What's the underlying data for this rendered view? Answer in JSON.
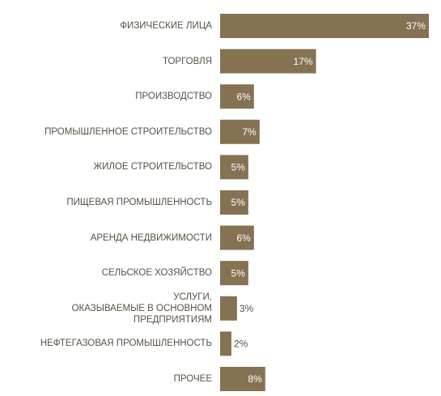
{
  "chart_data": {
    "type": "barh",
    "categories": [
      "ФИЗИЧЕСКИЕ ЛИЦА",
      "ТОРГОВЛЯ",
      "ПРОИЗВОДСТВО",
      "ПРОМЫШЛЕННОЕ СТРОИТЕЛЬСТВО",
      "ЖИЛОЕ СТРОИТЕЛЬСТВО",
      "ПИЩЕВАЯ ПРОМЫШЛЕННОСТЬ",
      "АРЕНДА НЕДВИЖИМОСТИ",
      "СЕЛЬСКОЕ ХОЗЯЙСТВО",
      "УСЛУГИ,\nОКАЗЫВАЕМЫЕ В ОСНОВНОМ ПРЕДПРИЯТИЯМ",
      "НЕФТЕГАЗОВАЯ ПРОМЫШЛЕННОСТЬ",
      "ПРОЧЕЕ"
    ],
    "values": [
      37,
      17,
      6,
      7,
      5,
      5,
      6,
      5,
      3,
      2,
      8
    ],
    "value_labels": [
      "37%",
      "17%",
      "6%",
      "7%",
      "5%",
      "5%",
      "6%",
      "5%",
      "3%",
      "2%",
      "8%"
    ],
    "color": "#857252"
  }
}
